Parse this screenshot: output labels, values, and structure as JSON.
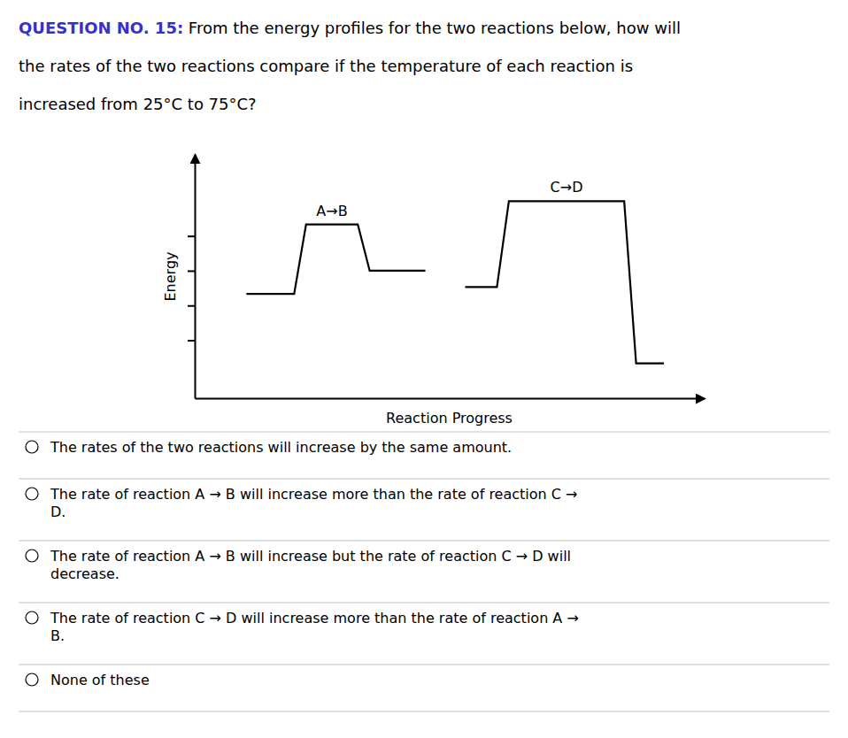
{
  "chart_data": {
    "type": "line",
    "title": {
      "text": "QUESTION NO. 15:",
      "color": "#3333cc"
    },
    "subtitle": [
      " From the energy profiles for the two reactions below, how will",
      "the rates of the two reactions compare if the temperature of each reaction is",
      "increased from 25°C to 75°C?"
    ],
    "x_label": "Reaction Progress",
    "y_label": "Energy",
    "series": [
      {
        "name": "A→B",
        "color": "#000000",
        "x": [
          1.0,
          2.2,
          2.5,
          3.8,
          4.1,
          5.5
        ],
        "values": [
          4.5,
          4.5,
          7.5,
          7.5,
          5.5,
          5.5
        ]
      },
      {
        "name": "C→D",
        "color": "#000000",
        "x": [
          6.5,
          7.3,
          7.6,
          9.2,
          9.5,
          10.5,
          10.8,
          11.5
        ],
        "values": [
          4.8,
          4.8,
          8.5,
          8.5,
          8.5,
          8.5,
          1.5,
          1.5
        ]
      }
    ],
    "xlim": [
      -0.3,
      12.5
    ],
    "ylim": [
      0.0,
      10.5
    ],
    "yticks": [
      2.5,
      4.0,
      5.5,
      7.0
    ],
    "tick_labels": false,
    "grid": false,
    "annotations": [
      "The rates of the two reactions will increase by the same amount.",
      "The rate of reaction A → B will increase more than the rate of reaction C →\nD.",
      "The rate of reaction A → B will increase but the rate of reaction C → D will\ndecrease.",
      "The rate of reaction C → D will increase more than the rate of reaction A →\nB.",
      "None of these"
    ]
  }
}
